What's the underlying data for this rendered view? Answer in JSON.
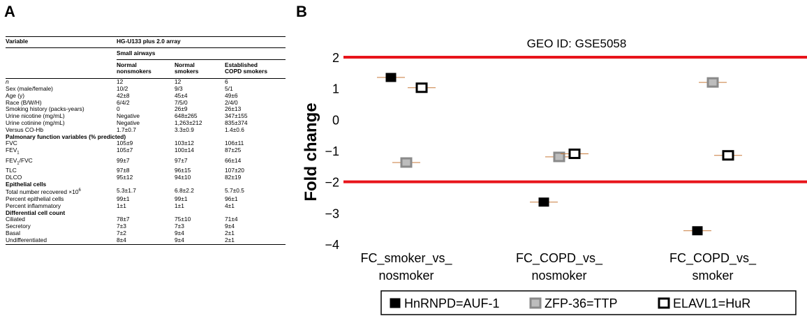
{
  "panel_a": {
    "letter": "A",
    "array_title": "HG-U133 plus 2.0 array",
    "variable_header": "Variable",
    "tissue": "Small airways",
    "columns": [
      "Normal nonsmokers",
      "Normal smokers",
      "Established COPD smokers"
    ],
    "column_lines": [
      [
        "Normal",
        "nonsmokers"
      ],
      [
        "Normal",
        "smokers"
      ],
      [
        "Established",
        "COPD smokers"
      ]
    ],
    "rows": [
      {
        "label": "n",
        "italic": true,
        "values": [
          "12",
          "12",
          "6"
        ]
      },
      {
        "label": "Sex (male/female)",
        "values": [
          "10/2",
          "9/3",
          "5/1"
        ]
      },
      {
        "label": "Age (y)",
        "values": [
          "42±8",
          "45±4",
          "49±6"
        ]
      },
      {
        "label": "Race (B/W/H)",
        "values": [
          "6/4/2",
          "7/5/0",
          "2/4/0"
        ]
      },
      {
        "label": "Smoking history (packs-years)",
        "values": [
          "0",
          "26±9",
          "26±13"
        ]
      },
      {
        "label": "Urine nicotine (mg/mL)",
        "values": [
          "Negative",
          "648±265",
          "347±155"
        ]
      },
      {
        "label": "Urine cotinine (mg/mL)",
        "values": [
          "Negative",
          "1,263±212",
          "835±374"
        ]
      },
      {
        "label": "Versus CO-Hb",
        "values": [
          "1.7±0.7",
          "3.3±0.9",
          "1.4±0.6"
        ]
      },
      {
        "section": "Palmonary function variables (% predicted)"
      },
      {
        "label": "FVC",
        "values": [
          "105±9",
          "103±12",
          "106±11"
        ]
      },
      {
        "label": "FEV",
        "sub": "1",
        "values": [
          "105±7",
          "100±14",
          "87±25"
        ]
      },
      {
        "label": "FEV",
        "sub": "1",
        "suffix": "/FVC",
        "values": [
          "99±7",
          "97±7",
          "66±14"
        ]
      },
      {
        "label": "TLC",
        "values": [
          "97±8",
          "96±15",
          "107±20"
        ]
      },
      {
        "label": "DLCO",
        "values": [
          "95±12",
          "94±10",
          "82±19"
        ]
      },
      {
        "section": "Epithelial cells"
      },
      {
        "label": "Total number recovered ×10",
        "sup": "6",
        "values": [
          "5.3±1.7",
          "6.8±2.2",
          "5.7±0.5"
        ]
      },
      {
        "label": "Percent epithelial cells",
        "values": [
          "99±1",
          "99±1",
          "96±1"
        ]
      },
      {
        "label": "Percent inflammatory",
        "values": [
          "1±1",
          "1±1",
          "4±1"
        ]
      },
      {
        "section": "Differential cell count"
      },
      {
        "label": "Ciliated",
        "values": [
          "78±7",
          "75±10",
          "71±4"
        ]
      },
      {
        "label": "Secretory",
        "values": [
          "7±3",
          "7±3",
          "9±4"
        ]
      },
      {
        "label": "Basal",
        "values": [
          "7±2",
          "9±4",
          "2±1"
        ]
      },
      {
        "label": "Undifferentiated",
        "values": [
          "8±4",
          "9±4",
          "2±1"
        ]
      }
    ]
  },
  "panel_b": {
    "letter": "B"
  },
  "chart_data": {
    "type": "scatter",
    "title": "GEO ID: GSE5058",
    "ylabel": "Fold change",
    "xlabel": "",
    "ylim": [
      -4,
      2
    ],
    "yticks": [
      2,
      1,
      0,
      -1,
      -2,
      -3,
      -4
    ],
    "ytick_labels": [
      "2",
      "1",
      "0",
      "−1",
      "−2",
      "−3",
      "−4"
    ],
    "categories": [
      "FC_smoker_vs_nosmoker",
      "FC_COPD_vs_nosmoker",
      "FC_COPD_vs_smoker"
    ],
    "category_lines": [
      [
        "FC_smoker_vs_",
        "nosmoker"
      ],
      [
        "FC_COPD_vs_",
        "nosmoker"
      ],
      [
        "FC_COPD_vs_",
        "smoker"
      ]
    ],
    "reference_lines": [
      2,
      -2
    ],
    "reference_color": "#e8141b",
    "grid": false,
    "legend_position": "bottom",
    "series": [
      {
        "name": "HnRNPD=AUF-1",
        "marker": "filled-black",
        "values": [
          1.35,
          -2.65,
          -3.57
        ]
      },
      {
        "name": "ZFP-36=TTP",
        "marker": "gray",
        "values": [
          -1.38,
          -1.2,
          1.19
        ]
      },
      {
        "name": "ELAVL1=HuR",
        "marker": "hollow-black",
        "values": [
          1.02,
          -1.1,
          -1.15
        ]
      }
    ]
  }
}
